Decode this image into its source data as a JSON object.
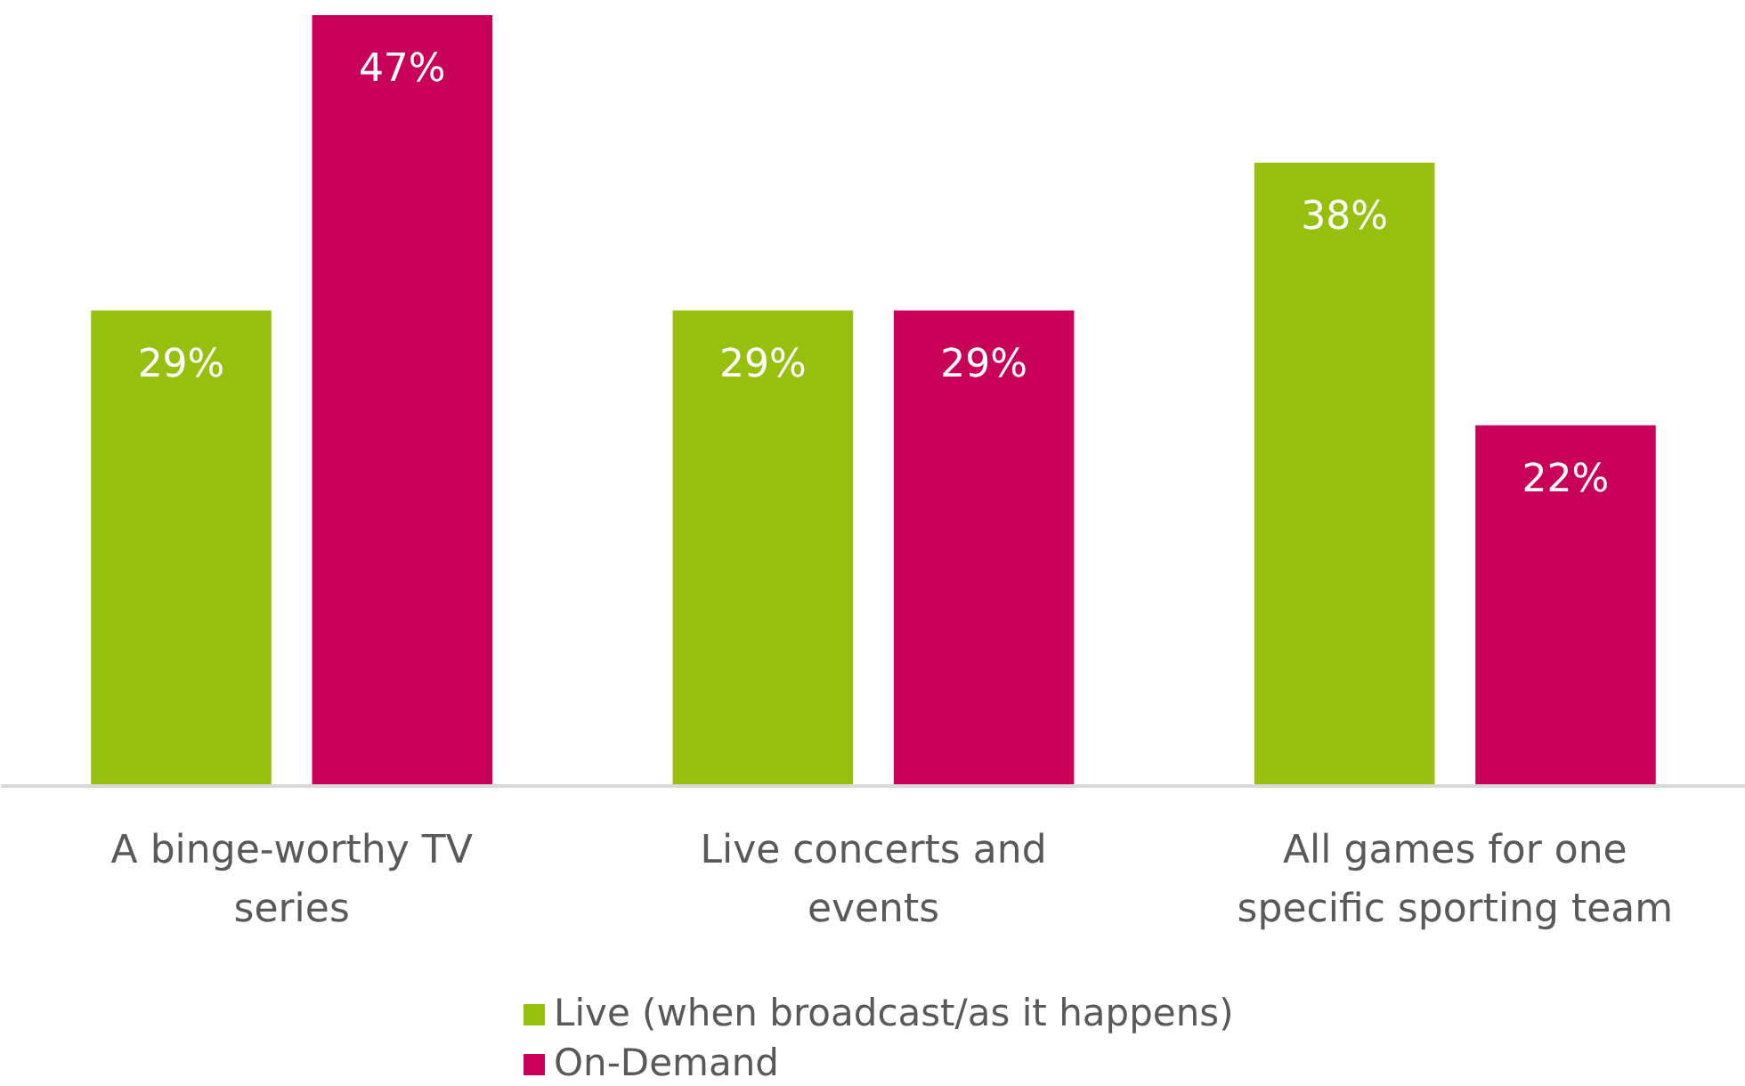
{
  "chart_data": {
    "type": "bar",
    "categories": [
      "A binge-worthy TV series",
      "Live concerts and events",
      "All games for one specific sporting team"
    ],
    "series": [
      {
        "name": "Live (when broadcast/as it happens)",
        "color": "#97bf0d",
        "values": [
          29,
          29,
          38
        ],
        "value_labels": [
          "29%",
          "29%",
          "38%"
        ]
      },
      {
        "name": "On-Demand",
        "color": "#c8005a",
        "values": [
          47,
          29,
          22
        ],
        "value_labels": [
          "47%",
          "29%",
          "22%"
        ]
      }
    ],
    "legend": "bottom"
  }
}
